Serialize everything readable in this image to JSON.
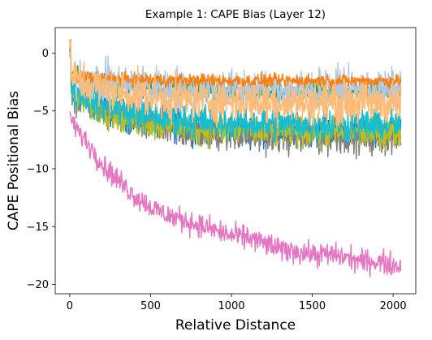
{
  "chart_data": {
    "type": "line",
    "title": "Example 1: CAPE Bias (Layer 12)",
    "xlabel": "Relative Distance",
    "ylabel": "CAPE Positional Bias",
    "xlim": [
      -90,
      2140
    ],
    "ylim": [
      -20.8,
      2.2
    ],
    "x_ticks": [
      0,
      500,
      1000,
      1500,
      2000
    ],
    "x_tick_labels": [
      "0",
      "500",
      "1000",
      "1500",
      "2000"
    ],
    "y_ticks": [
      0,
      -5,
      -10,
      -15,
      -20
    ],
    "y_tick_labels": [
      "0",
      "−5",
      "−10",
      "−15",
      "−20"
    ],
    "grid": false,
    "legend": "none",
    "x_range": [
      0,
      2047
    ],
    "series": [
      {
        "color": "#1f77b4",
        "start": -3.0,
        "end": -6.8,
        "noise": 1.2
      },
      {
        "color": "#7f7f7f",
        "start": -3.2,
        "end": -7.2,
        "noise": 1.4
      },
      {
        "color": "#2ca02c",
        "start": -1.8,
        "end": -3.4,
        "noise": 0.8
      },
      {
        "color": "#bcbd22",
        "start": -3.4,
        "end": -6.9,
        "noise": 1.2
      },
      {
        "color": "#17becf",
        "start": -3.0,
        "end": -6.2,
        "noise": 1.3
      },
      {
        "color": "#aec7e8",
        "start": -2.0,
        "end": -3.2,
        "noise": 1.6
      },
      {
        "color": "#ff7f0e",
        "start": -2.0,
        "end": -2.4,
        "noise": 0.5
      },
      {
        "color": "#ffbb78",
        "start": -2.0,
        "end": -4.3,
        "noise": 1.6
      },
      {
        "color": "#e377c2",
        "start": -5.5,
        "end": -18.2,
        "noise": 0.9
      }
    ],
    "anchors": {
      "pink": [
        [
          0,
          -5.5
        ],
        [
          50,
          -6.8
        ],
        [
          100,
          -7.6
        ],
        [
          150,
          -8.5
        ],
        [
          200,
          -9.6
        ],
        [
          300,
          -11.0
        ],
        [
          400,
          -12.3
        ],
        [
          500,
          -13.3
        ],
        [
          600,
          -14.0
        ],
        [
          700,
          -14.4
        ],
        [
          800,
          -14.9
        ],
        [
          900,
          -15.3
        ],
        [
          1000,
          -15.8
        ],
        [
          1100,
          -15.9
        ],
        [
          1200,
          -16.4
        ],
        [
          1300,
          -17.0
        ],
        [
          1400,
          -17.1
        ],
        [
          1500,
          -17.4
        ],
        [
          1600,
          -17.4
        ],
        [
          1700,
          -17.6
        ],
        [
          1800,
          -18.0
        ],
        [
          1900,
          -18.0
        ],
        [
          2000,
          -18.3
        ],
        [
          2047,
          -18.4
        ]
      ]
    }
  }
}
